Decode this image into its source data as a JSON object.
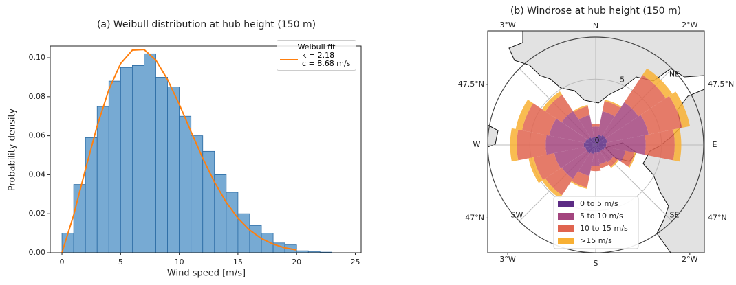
{
  "chart_data": [
    {
      "type": "histogram",
      "title": "(a) Weibull distribution at hub height (150 m)",
      "x_label": "Wind speed [m/s]",
      "y_label": "Probability density",
      "bins": [
        0,
        1,
        2,
        3,
        4,
        5,
        6,
        7,
        8,
        9,
        10,
        11,
        12,
        13,
        14,
        15,
        16,
        17,
        18,
        19,
        20,
        21,
        22,
        23
      ],
      "counts": [
        0.01,
        0.035,
        0.059,
        0.075,
        0.088,
        0.095,
        0.096,
        0.102,
        0.09,
        0.085,
        0.07,
        0.06,
        0.052,
        0.04,
        0.031,
        0.02,
        0.014,
        0.01,
        0.005,
        0.004,
        0.001,
        0.0005,
        0.0003
      ],
      "color": "#77aad3",
      "edgecolor": "#2a6aa3",
      "legend_title": "Weibull fit",
      "series": [
        {
          "name": "k = 2.18\nc = 8.68 m/s",
          "color": "#ff7f0e",
          "x": [
            0,
            1,
            2,
            3,
            4,
            5,
            6,
            7,
            8,
            9,
            10,
            11,
            12,
            13,
            14,
            15,
            16,
            17,
            18,
            19,
            20
          ],
          "values": [
            0,
            0.0194,
            0.0427,
            0.065,
            0.0837,
            0.097,
            0.1039,
            0.1042,
            0.0988,
            0.0888,
            0.0761,
            0.0621,
            0.0485,
            0.0362,
            0.0259,
            0.0177,
            0.0116,
            0.0073,
            0.0044,
            0.0025,
            0.0014
          ]
        }
      ],
      "xlim": [
        -1,
        25.5
      ],
      "ylim": [
        0,
        0.106
      ],
      "xticks": [
        0,
        5,
        10,
        15,
        20,
        25
      ],
      "yticks": [
        {
          "value": 0,
          "label": "0.00"
        },
        {
          "value": 0.02,
          "label": "0.02"
        },
        {
          "value": 0.04,
          "label": "0.04"
        },
        {
          "value": 0.06,
          "label": "0.06"
        },
        {
          "value": 0.08,
          "label": "0.08"
        },
        {
          "value": 0.1,
          "label": "0.10"
        }
      ]
    },
    {
      "type": "windrose",
      "title": "(b) Windrose at hub height (150 m)",
      "compass_labels": [
        "N",
        "NE",
        "E",
        "SE",
        "S",
        "SW",
        "W",
        null
      ],
      "rlim": [
        0,
        8.2
      ],
      "rticks": [
        0,
        5
      ],
      "series": [
        {
          "name": "0 to 5 m/s",
          "color": "#5c2b84",
          "values": [
            0.6,
            0.8,
            0.9,
            0.9,
            0.8,
            0.7,
            0.6,
            0.6,
            0.6,
            0.7,
            0.8,
            0.8,
            0.9,
            0.8,
            0.7,
            0.6
          ]
        },
        {
          "name": "5 to 10 m/s",
          "color": "#a3457e",
          "values": [
            0.8,
            1.8,
            3.0,
            3.2,
            3.0,
            1.6,
            1.0,
            0.9,
            1.0,
            1.7,
            2.3,
            2.4,
            2.9,
            2.8,
            2.4,
            1.7
          ]
        },
        {
          "name": "10 to 15 m/s",
          "color": "#e0644f",
          "values": [
            0.2,
            0.8,
            2.5,
            2.6,
            2.2,
            0.7,
            0.4,
            0.3,
            0.4,
            0.9,
            1.5,
            1.6,
            2.2,
            2.1,
            1.5,
            0.7
          ]
        },
        {
          "name": ">15 m/s",
          "color": "#f8b033",
          "values": [
            0.0,
            0.1,
            0.6,
            0.6,
            0.5,
            0.1,
            0.1,
            0.0,
            0.0,
            0.1,
            0.3,
            0.4,
            0.5,
            0.5,
            0.3,
            0.1
          ]
        }
      ],
      "map": {
        "xlim": [
          -3.11,
          -1.92
        ],
        "ylim": [
          46.87,
          47.7
        ],
        "xticks": [
          {
            "value": -3,
            "label": "3°W"
          },
          {
            "value": -2,
            "label": "2°W"
          }
        ],
        "yticks": [
          {
            "value": 47,
            "label": "47°N"
          },
          {
            "value": 47.5,
            "label": "47.5°N"
          }
        ]
      }
    }
  ]
}
